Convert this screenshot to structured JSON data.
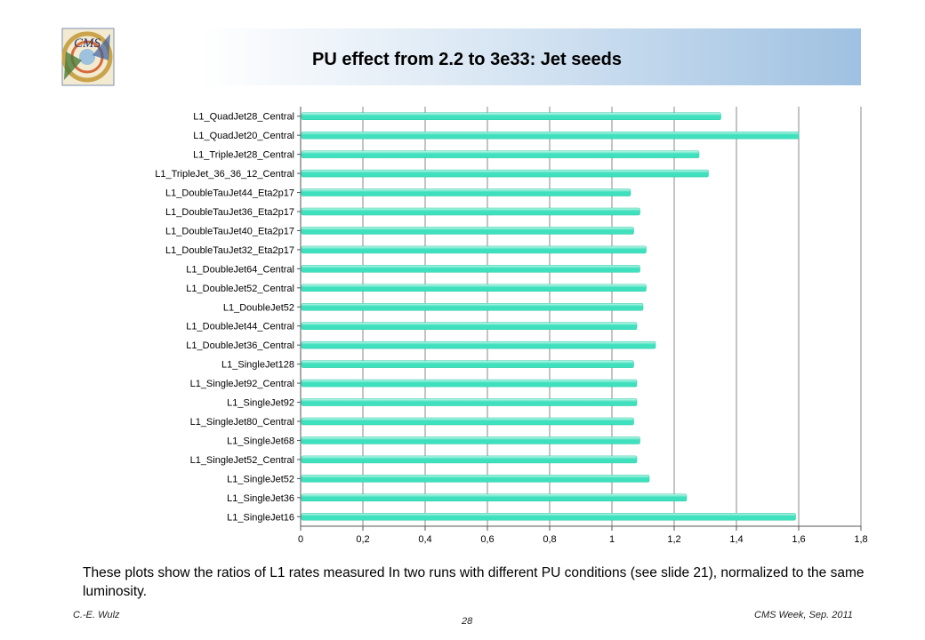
{
  "slide": {
    "title": "PU effect from 2.2 to 3e33: Jet seeds",
    "footnote": "These plots show the ratios of L1 rates measured In two runs with different PU conditions (see slide 21), normalized to the same luminosity.",
    "footer_left": "C.-E. Wulz",
    "footer_page": "28",
    "footer_right": "CMS Week, Sep. 2011",
    "logo_text": "CMS"
  },
  "colors": {
    "bar": "#3ee0bd",
    "bar_highlight": "#c9f7ec",
    "grid": "#888888",
    "header_gradient_end": "#9fc1e1"
  },
  "chart_data": {
    "type": "bar",
    "orientation": "horizontal",
    "categories": [
      "L1_QuadJet28_Central",
      "L1_QuadJet20_Central",
      "L1_TripleJet28_Central",
      "L1_TripleJet_36_36_12_Central",
      "L1_DoubleTauJet44_Eta2p17",
      "L1_DoubleTauJet36_Eta2p17",
      "L1_DoubleTauJet40_Eta2p17",
      "L1_DoubleTauJet32_Eta2p17",
      "L1_DoubleJet64_Central",
      "L1_DoubleJet52_Central",
      "L1_DoubleJet52",
      "L1_DoubleJet44_Central",
      "L1_DoubleJet36_Central",
      "L1_SingleJet128",
      "L1_SingleJet92_Central",
      "L1_SingleJet92",
      "L1_SingleJet80_Central",
      "L1_SingleJet68",
      "L1_SingleJet52_Central",
      "L1_SingleJet52",
      "L1_SingleJet36",
      "L1_SingleJet16"
    ],
    "values": [
      1.35,
      1.6,
      1.28,
      1.31,
      1.06,
      1.09,
      1.07,
      1.11,
      1.09,
      1.11,
      1.1,
      1.08,
      1.14,
      1.07,
      1.08,
      1.08,
      1.07,
      1.09,
      1.08,
      1.12,
      1.24,
      1.59
    ],
    "xlim": [
      0,
      1.8
    ],
    "xticks": [
      "0",
      "0,2",
      "0,4",
      "0,6",
      "0,8",
      "1",
      "1,2",
      "1,4",
      "1,6",
      "1,8"
    ],
    "grid": "vertical",
    "title": "",
    "xlabel": "",
    "ylabel": ""
  }
}
